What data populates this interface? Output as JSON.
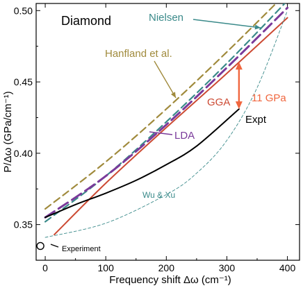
{
  "chart_data": {
    "type": "line",
    "title": "Diamond",
    "xlabel": "Frequency shift Δω (cm⁻¹)",
    "ylabel": "P/Δω (GPa/cm⁻¹)",
    "xlim": [
      -15,
      420
    ],
    "ylim": [
      0.325,
      0.505
    ],
    "xticks": [
      0,
      100,
      200,
      300,
      400
    ],
    "xtick_labels": [
      "0",
      "100",
      "200",
      "300",
      "400"
    ],
    "yticks": [
      0.35,
      0.4,
      0.45,
      0.5
    ],
    "ytick_labels": [
      "0.35",
      "0.40",
      "0.45",
      "0.50"
    ],
    "series": [
      {
        "name": "Hanfland et al.",
        "color": "#a08a3c",
        "style": "dashed",
        "x": [
          0,
          100,
          200,
          300,
          400
        ],
        "y": [
          0.361,
          0.394,
          0.431,
          0.471,
          0.513
        ]
      },
      {
        "name": "Nielsen",
        "color": "#3a8a8a",
        "style": "dashed",
        "x": [
          0,
          100,
          200,
          300,
          400
        ],
        "y": [
          0.352,
          0.384,
          0.422,
          0.463,
          0.507
        ]
      },
      {
        "name": "LDA",
        "color": "#7a3a9a",
        "style": "long-dashed",
        "x": [
          0,
          100,
          200,
          300,
          400
        ],
        "y": [
          0.355,
          0.384,
          0.42,
          0.46,
          0.502
        ]
      },
      {
        "name": "GGA",
        "color": "#cc4a33",
        "style": "solid",
        "x": [
          15,
          100,
          200,
          300,
          400
        ],
        "y": [
          0.343,
          0.379,
          0.418,
          0.456,
          0.495
        ]
      },
      {
        "name": "Expt",
        "color": "#000000",
        "style": "solid",
        "x": [
          0,
          50,
          100,
          150,
          200,
          250,
          320
        ],
        "y": [
          0.355,
          0.364,
          0.372,
          0.381,
          0.392,
          0.405,
          0.431
        ]
      },
      {
        "name": "Wu & Xu",
        "color": "#3a8a8a",
        "style": "thin-dashed",
        "x": [
          0,
          100,
          200,
          250,
          300,
          350,
          400
        ],
        "y": [
          0.341,
          0.351,
          0.371,
          0.386,
          0.409,
          0.446,
          0.5
        ]
      }
    ],
    "points": [
      {
        "name": "Experiment",
        "x": -8,
        "y": 0.335
      }
    ],
    "annotations": {
      "title_text": "Diamond",
      "nielsen": "Nielsen",
      "hanfland": "Hanfland et al.",
      "lda": "LDA",
      "gga": "GGA",
      "expt": "Expt",
      "wu_xu": "Wu & Xu",
      "experiment": "Experiment",
      "gap": "11 GPa"
    },
    "gap_arrow": {
      "x": 320,
      "y_top": 0.464,
      "y_bottom": 0.431
    },
    "colors": {
      "gap": "#f0663e"
    },
    "grid": false
  }
}
